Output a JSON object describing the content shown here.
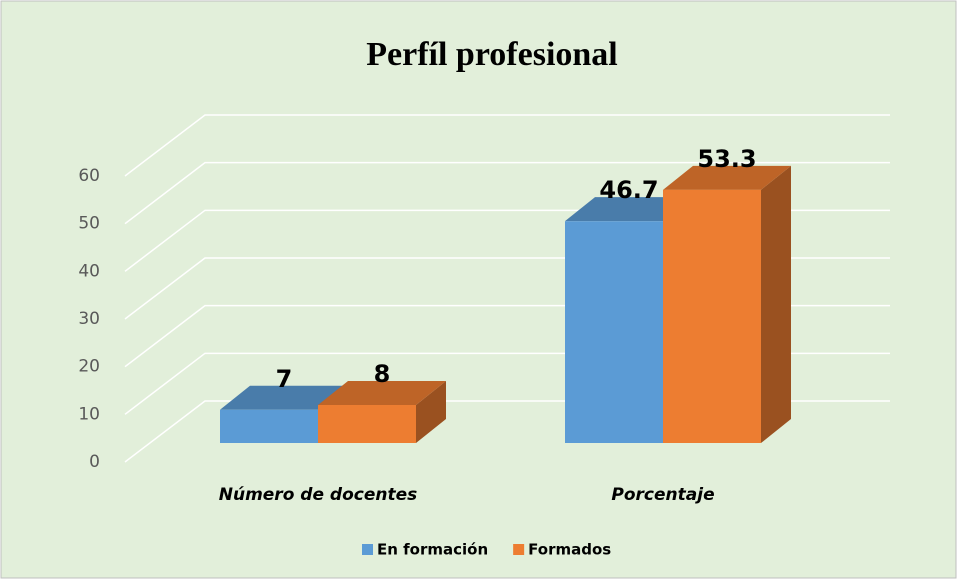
{
  "chart_data": {
    "type": "bar3d",
    "title": "Perfíl profesional",
    "categories": [
      "Número de docentes",
      "Porcentaje"
    ],
    "series": [
      {
        "name": "En formación",
        "color": "#5b9bd5",
        "values": [
          7,
          46.7
        ]
      },
      {
        "name": "Formados",
        "color": "#ed7d31",
        "values": [
          8,
          53.3
        ]
      }
    ],
    "ylim": [
      0,
      60
    ],
    "yticks": [
      0,
      10,
      20,
      30,
      40,
      50,
      60
    ],
    "grid": true,
    "legend": "bottom"
  }
}
